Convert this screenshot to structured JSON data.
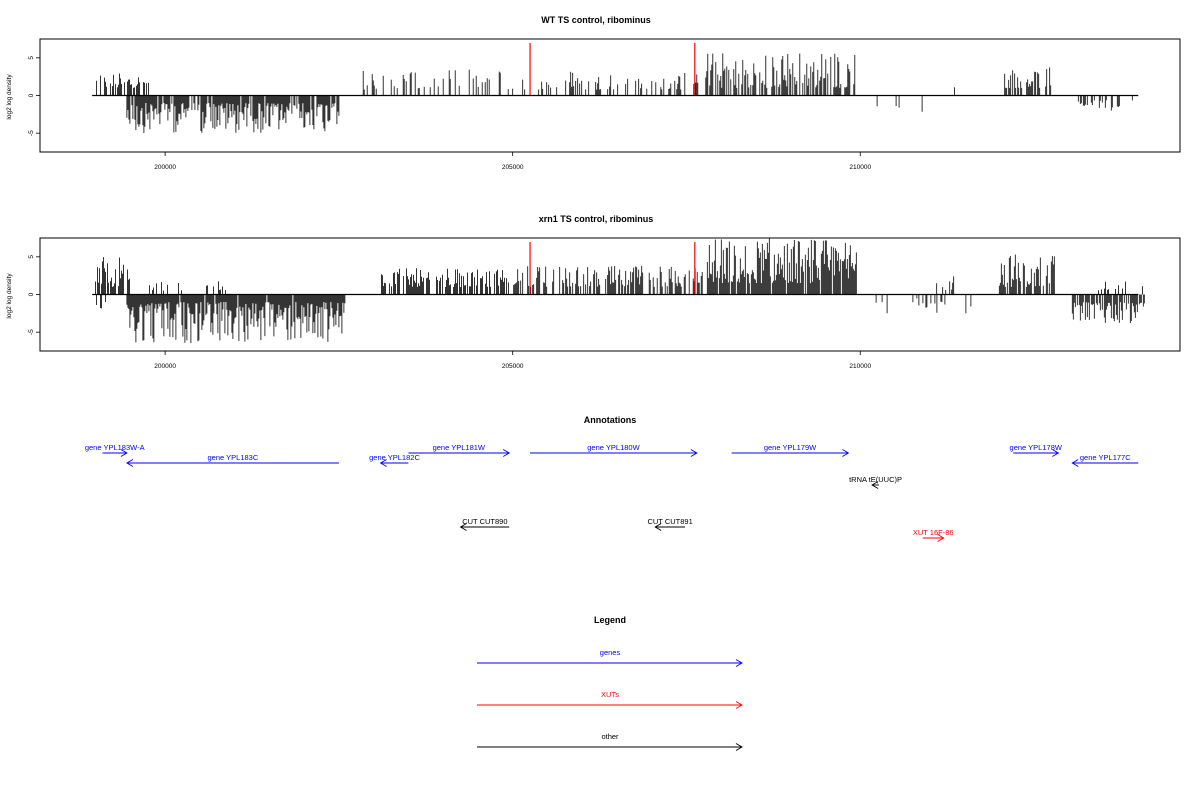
{
  "colors": {
    "genes": "#0000ff",
    "XUTs": "#ff0000",
    "other": "#000000",
    "bars": "#000000",
    "marker": "#ff0000"
  },
  "chart_data": [
    {
      "type": "bar",
      "title": "WT TS control, ribominus",
      "ylabel": "log2 log density",
      "xlim": [
        198200,
        214600
      ],
      "ylim": [
        -7.5,
        7.5
      ],
      "xticks": [
        200000,
        205000,
        210000
      ],
      "yticks": [
        -5,
        0,
        5
      ],
      "marker_positions": [
        205250,
        207620
      ],
      "segments": [
        {
          "start": 199000,
          "end": 199800,
          "min": 1.0,
          "max": 3.0,
          "dir": 1,
          "density": 0.55
        },
        {
          "start": 199450,
          "end": 202500,
          "min": 1.0,
          "max": 5.0,
          "dir": -1,
          "density": 0.85
        },
        {
          "start": 202850,
          "end": 204950,
          "min": 0.8,
          "max": 3.5,
          "dir": 1,
          "density": 0.3
        },
        {
          "start": 205000,
          "end": 206900,
          "min": 0.8,
          "max": 3.5,
          "dir": 1,
          "density": 0.25
        },
        {
          "start": 206900,
          "end": 207700,
          "min": 0.8,
          "max": 3.0,
          "dir": 1,
          "density": 0.3
        },
        {
          "start": 207750,
          "end": 209950,
          "min": 1.0,
          "max": 5.8,
          "dir": 1,
          "density": 0.6
        },
        {
          "start": 210200,
          "end": 210900,
          "min": 0.8,
          "max": 2.5,
          "dir": -1,
          "density": 0.05
        },
        {
          "start": 211300,
          "end": 211400,
          "min": 1.0,
          "max": 2.2,
          "dir": 1,
          "density": 0.2
        },
        {
          "start": 212050,
          "end": 212750,
          "min": 1.0,
          "max": 3.8,
          "dir": 1,
          "density": 0.5
        },
        {
          "start": 213050,
          "end": 214000,
          "min": 0.6,
          "max": 2.0,
          "dir": -1,
          "density": 0.35
        }
      ]
    },
    {
      "type": "bar",
      "title": "xrn1 TS control, ribominus",
      "ylabel": "log2 log density",
      "xlim": [
        198200,
        214600
      ],
      "ylim": [
        -7.5,
        7.5
      ],
      "xticks": [
        200000,
        205000,
        210000
      ],
      "yticks": [
        -5,
        0,
        5
      ],
      "marker_positions": [
        205250,
        207620
      ],
      "segments": [
        {
          "start": 199000,
          "end": 199500,
          "min": 1.0,
          "max": 5.0,
          "dir": 1,
          "density": 0.8
        },
        {
          "start": 199000,
          "end": 199150,
          "min": 1.0,
          "max": 2.0,
          "dir": -1,
          "density": 0.4
        },
        {
          "start": 199450,
          "end": 202600,
          "min": 1.0,
          "max": 6.5,
          "dir": -1,
          "density": 0.95
        },
        {
          "start": 199500,
          "end": 200900,
          "min": 0.5,
          "max": 2.0,
          "dir": 1,
          "density": 0.15
        },
        {
          "start": 203100,
          "end": 204950,
          "min": 1.0,
          "max": 3.5,
          "dir": 1,
          "density": 0.7
        },
        {
          "start": 205000,
          "end": 206950,
          "min": 1.0,
          "max": 3.8,
          "dir": 1,
          "density": 0.6
        },
        {
          "start": 206950,
          "end": 207750,
          "min": 1.0,
          "max": 3.8,
          "dir": 1,
          "density": 0.6
        },
        {
          "start": 207800,
          "end": 209950,
          "min": 1.5,
          "max": 7.5,
          "dir": 1,
          "density": 0.95
        },
        {
          "start": 210200,
          "end": 210400,
          "min": 1.0,
          "max": 4.5,
          "dir": -1,
          "density": 0.1
        },
        {
          "start": 210700,
          "end": 211600,
          "min": 0.5,
          "max": 2.5,
          "dir": -1,
          "density": 0.2
        },
        {
          "start": 211100,
          "end": 211400,
          "min": 0.5,
          "max": 2.5,
          "dir": 1,
          "density": 0.3
        },
        {
          "start": 212000,
          "end": 212800,
          "min": 1.0,
          "max": 5.5,
          "dir": 1,
          "density": 0.75
        },
        {
          "start": 213050,
          "end": 214100,
          "min": 1.0,
          "max": 4.0,
          "dir": -1,
          "density": 0.8
        },
        {
          "start": 213400,
          "end": 214100,
          "min": 0.5,
          "max": 1.8,
          "dir": 1,
          "density": 0.2
        }
      ]
    }
  ],
  "annotations": {
    "title": "Annotations",
    "items": [
      {
        "label": "gene YPL183W-A",
        "category": "genes",
        "start": 199100,
        "end": 199450,
        "strand": "+",
        "row": 0
      },
      {
        "label": "gene YPL183C",
        "category": "genes",
        "start": 199450,
        "end": 202500,
        "strand": "-",
        "row": 1
      },
      {
        "label": "gene YPL182C",
        "category": "genes",
        "start": 203100,
        "end": 203500,
        "strand": "-",
        "row": 1
      },
      {
        "label": "gene YPL181W",
        "category": "genes",
        "start": 203500,
        "end": 204950,
        "strand": "+",
        "row": 0
      },
      {
        "label": "gene YPL180W",
        "category": "genes",
        "start": 205250,
        "end": 207650,
        "strand": "+",
        "row": 0
      },
      {
        "label": "gene YPL179W",
        "category": "genes",
        "start": 208150,
        "end": 209830,
        "strand": "+",
        "row": 0
      },
      {
        "label": "gene YPL178W",
        "category": "genes",
        "start": 212200,
        "end": 212850,
        "strand": "+",
        "row": 0
      },
      {
        "label": "gene YPL177C",
        "category": "genes",
        "start": 213050,
        "end": 214000,
        "strand": "-",
        "row": 1
      },
      {
        "label": "tRNA tE(UUC)P",
        "category": "other",
        "start": 210170,
        "end": 210270,
        "strand": "-",
        "row": 2
      },
      {
        "label": "CUT CUT890",
        "category": "other",
        "start": 204250,
        "end": 204950,
        "strand": "-",
        "row": 3
      },
      {
        "label": "CUT CUT891",
        "category": "other",
        "start": 207050,
        "end": 207480,
        "strand": "-",
        "row": 3
      },
      {
        "label": "XUT 16F-86",
        "category": "XUTs",
        "start": 210900,
        "end": 211200,
        "strand": "+",
        "row": 4
      }
    ]
  },
  "legend": {
    "title": "Legend",
    "items": [
      {
        "label": "genes",
        "category": "genes"
      },
      {
        "label": "XUTs",
        "category": "XUTs"
      },
      {
        "label": "other",
        "category": "other"
      }
    ]
  }
}
